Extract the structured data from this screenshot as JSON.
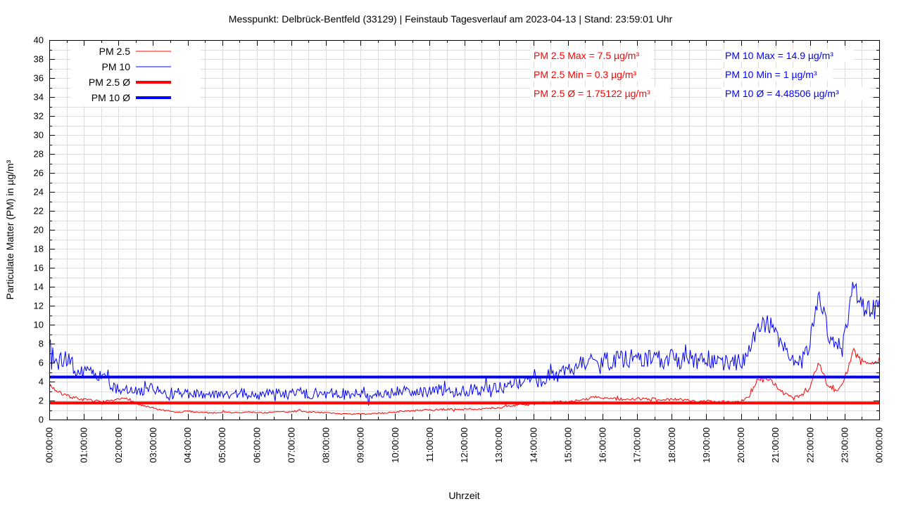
{
  "header": {
    "title": "Messpunkt: Delbrück-Bentfeld (33129) | Feinstaub Tagesverlauf am 2023-04-13 | Stand: 23:59:01 Uhr"
  },
  "chart_data": {
    "type": "line",
    "xlabel": "Uhrzeit",
    "ylabel": "Particulate Matter (PM) in µg/m³",
    "ylim": [
      0,
      40
    ],
    "xlim_hours": [
      0,
      24
    ],
    "y_tick_step": 2,
    "y_minor_step": 1,
    "x_tick_step_hours": 1,
    "x_minor_step_hours": 0.5,
    "grid": {
      "color": "#dcdcdc",
      "show_minor": true,
      "legend_position": "top-left",
      "stats_position": "top-center-right"
    },
    "y_tick_labels": [
      "0",
      "2",
      "4",
      "6",
      "8",
      "10",
      "12",
      "14",
      "16",
      "18",
      "20",
      "22",
      "24",
      "26",
      "28",
      "30",
      "32",
      "34",
      "36",
      "38",
      "40"
    ],
    "x_tick_labels": [
      "00:00:00",
      "01:00:00",
      "02:00:00",
      "03:00:00",
      "04:00:00",
      "05:00:00",
      "06:00:00",
      "07:00:00",
      "08:00:00",
      "09:00:00",
      "10:00:00",
      "11:00:00",
      "12:00:00",
      "13:00:00",
      "14:00:00",
      "15:00:00",
      "16:00:00",
      "17:00:00",
      "18:00:00",
      "19:00:00",
      "20:00:00",
      "21:00:00",
      "22:00:00",
      "23:00:00",
      "00:00:00"
    ],
    "legend": [
      {
        "label": "PM 2.5",
        "color": "#ff0000",
        "line_width": 1
      },
      {
        "label": "PM 10",
        "color": "#0000ff",
        "line_width": 1
      },
      {
        "label": "PM 2.5 Ø",
        "color": "#ff0000",
        "line_width": 4
      },
      {
        "label": "PM 10 Ø",
        "color": "#0000ff",
        "line_width": 4
      }
    ],
    "series": [
      {
        "name": "PM 2.5",
        "color": "#ff0000",
        "line_width": 1,
        "sample_interval_hours": 0.25,
        "values": [
          3.7,
          2.9,
          2.5,
          2.3,
          2.1,
          2.0,
          1.9,
          1.9,
          2.1,
          2.3,
          1.7,
          1.4,
          1.2,
          1.0,
          0.85,
          0.75,
          0.9,
          0.8,
          0.75,
          0.7,
          0.8,
          0.75,
          0.7,
          0.8,
          0.75,
          0.7,
          0.8,
          0.8,
          0.85,
          0.9,
          0.8,
          0.8,
          0.7,
          0.65,
          0.6,
          0.55,
          0.6,
          0.6,
          0.65,
          0.7,
          0.8,
          0.9,
          0.9,
          1.0,
          1.0,
          1.05,
          1.1,
          1.05,
          1.1,
          1.15,
          1.1,
          1.15,
          1.2,
          1.4,
          1.5,
          1.6,
          1.65,
          1.75,
          1.8,
          1.85,
          1.9,
          2.0,
          2.1,
          2.4,
          2.3,
          2.2,
          2.15,
          2.1,
          2.2,
          2.15,
          2.2,
          2.1,
          2.15,
          2.1,
          2.0,
          1.95,
          1.95,
          1.9,
          1.9,
          1.85,
          1.9,
          2.5,
          4.3,
          4.4,
          3.6,
          2.7,
          2.4,
          2.5,
          3.4,
          6.2,
          3.6,
          3.0,
          4.3,
          7.3,
          6.1,
          5.9,
          6.3
        ]
      },
      {
        "name": "PM 10",
        "color": "#0000ff",
        "line_width": 1,
        "sample_interval_hours": 0.25,
        "values": [
          7.6,
          6.0,
          6.3,
          5.4,
          4.9,
          4.7,
          4.4,
          3.8,
          3.1,
          3.3,
          2.9,
          3.1,
          3.4,
          2.7,
          2.5,
          2.8,
          2.6,
          2.8,
          2.5,
          2.7,
          2.9,
          2.6,
          2.7,
          2.9,
          2.6,
          2.7,
          2.9,
          2.6,
          2.7,
          2.9,
          2.6,
          2.8,
          2.7,
          2.9,
          2.8,
          2.6,
          2.8,
          2.7,
          2.9,
          2.7,
          2.9,
          3.1,
          3.0,
          3.1,
          2.9,
          3.2,
          3.0,
          3.1,
          3.0,
          3.2,
          3.1,
          3.3,
          3.3,
          3.5,
          3.7,
          3.9,
          4.0,
          4.2,
          4.4,
          4.7,
          5.2,
          5.8,
          6.2,
          6.0,
          6.3,
          6.1,
          6.3,
          6.5,
          6.3,
          6.5,
          6.4,
          6.3,
          6.5,
          6.3,
          6.4,
          6.2,
          6.4,
          6.2,
          6.0,
          5.9,
          6.1,
          7.2,
          9.8,
          10.2,
          9.4,
          7.3,
          6.2,
          5.9,
          8.0,
          13.4,
          9.2,
          7.9,
          8.8,
          14.3,
          12.0,
          11.3,
          12.0
        ]
      }
    ],
    "averages": [
      {
        "name": "PM 2.5 Ø",
        "color": "#ff0000",
        "value": 1.75122,
        "line_width": 4
      },
      {
        "name": "PM 10 Ø",
        "color": "#0000ff",
        "value": 4.48506,
        "line_width": 4
      }
    ],
    "stats": {
      "pm25": {
        "color": "#ff0000",
        "max": 7.5,
        "min": 0.3,
        "avg": 1.75122,
        "lines": [
          "PM 2.5 Max = 7.5 µg/m³",
          "PM 2.5 Min = 0.3 µg/m³",
          "PM 2.5 Ø = 1.75122 µg/m³"
        ]
      },
      "pm10": {
        "color": "#0000ff",
        "max": 14.9,
        "min": 1,
        "avg": 4.48506,
        "lines": [
          "PM 10 Max = 14.9 µg/m³",
          "PM 10 Min = 1 µg/m³",
          "PM 10 Ø = 4.48506 µg/m³"
        ]
      }
    }
  }
}
